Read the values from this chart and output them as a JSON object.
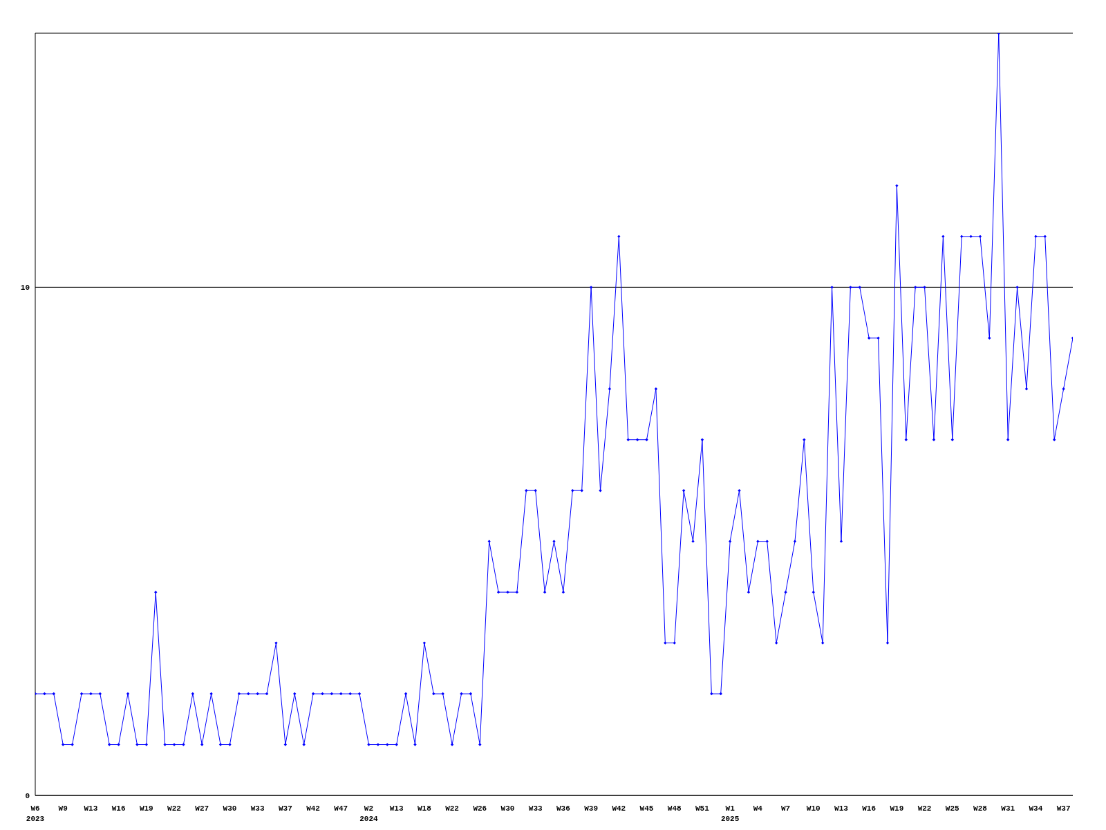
{
  "chart_data": {
    "type": "line",
    "categories": [
      "W6\n2023",
      null,
      null,
      "W9",
      null,
      null,
      "W13",
      null,
      null,
      "W16",
      null,
      null,
      "W19",
      null,
      null,
      "W22",
      null,
      null,
      "W27",
      null,
      null,
      "W30",
      null,
      null,
      "W33",
      null,
      null,
      "W37",
      null,
      null,
      "W42",
      null,
      null,
      "W47",
      null,
      null,
      "W2\n2024",
      null,
      null,
      "W13",
      null,
      null,
      "W18",
      null,
      null,
      "W22",
      null,
      null,
      "W26",
      null,
      null,
      "W30",
      null,
      null,
      "W33",
      null,
      null,
      "W36",
      null,
      null,
      "W39",
      null,
      null,
      "W42",
      null,
      null,
      "W45",
      null,
      null,
      "W48",
      null,
      null,
      "W51",
      null,
      null,
      "W1\n2025",
      null,
      null,
      "W4",
      null,
      null,
      "W7",
      null,
      null,
      "W10",
      null,
      null,
      "W13",
      null,
      null,
      "W16",
      null,
      null,
      "W19",
      null,
      null,
      "W22",
      null,
      null,
      "W25",
      null,
      null,
      "W28",
      null,
      null,
      "W31",
      null,
      null,
      "W34",
      null,
      null,
      "W37",
      null
    ],
    "series": [
      {
        "color": "#0000ff",
        "values": [
          2,
          2,
          2,
          1,
          1,
          2,
          2,
          2,
          1,
          1,
          2,
          1,
          1,
          4,
          1,
          1,
          1,
          2,
          1,
          2,
          1,
          1,
          2,
          2,
          2,
          2,
          3,
          1,
          2,
          1,
          2,
          2,
          2,
          2,
          2,
          2,
          1,
          1,
          1,
          1,
          2,
          1,
          3,
          2,
          2,
          1,
          2,
          2,
          1,
          5,
          4,
          4,
          4,
          6,
          6,
          4,
          5,
          4,
          6,
          6,
          10,
          6,
          8,
          11,
          7,
          7,
          7,
          8,
          3,
          3,
          6,
          5,
          7,
          2,
          2,
          5,
          6,
          4,
          5,
          5,
          3,
          4,
          5,
          7,
          4,
          3,
          10,
          5,
          10,
          10,
          9,
          9,
          3,
          12,
          7,
          10,
          10,
          7,
          11,
          7,
          11,
          11,
          11,
          9,
          15,
          7,
          10,
          8,
          11,
          11,
          7,
          8,
          9
        ]
      }
    ],
    "ylim": [
      0,
      15
    ],
    "yticks": [
      0,
      10
    ],
    "grid": "y",
    "marker": "diamond",
    "line_style": "solid"
  }
}
